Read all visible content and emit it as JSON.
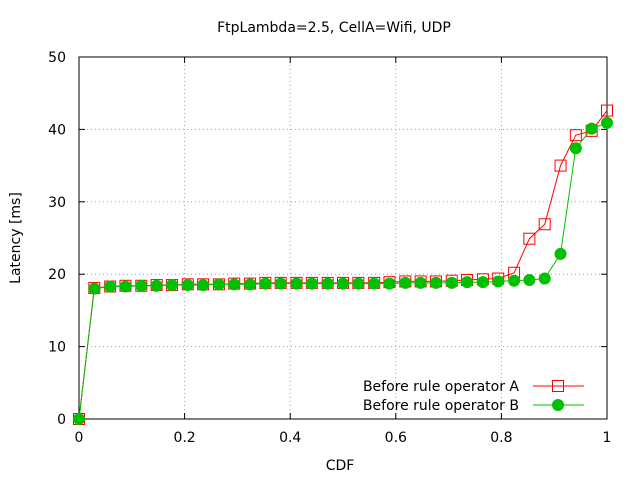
{
  "chart_data": {
    "type": "line",
    "title": "FtpLambda=2.5, CellA=Wifi, UDP",
    "xlabel": "CDF",
    "ylabel": "Latency [ms]",
    "xlim": [
      0,
      1
    ],
    "ylim": [
      0,
      50
    ],
    "x_ticks": [
      0,
      0.2,
      0.4,
      0.6,
      0.8,
      1
    ],
    "x_tick_labels": [
      "0",
      "0.2",
      "0.4",
      "0.6",
      "0.8",
      "1"
    ],
    "y_ticks": [
      0,
      10,
      20,
      30,
      40,
      50
    ],
    "y_tick_labels": [
      "0",
      "10",
      "20",
      "30",
      "40",
      "50"
    ],
    "grid": true,
    "legend_position": "bottom-right",
    "series": [
      {
        "name": "Before rule operator A",
        "color": "#ff0000",
        "marker": "open-square",
        "x": [
          0,
          0.029,
          0.059,
          0.088,
          0.118,
          0.147,
          0.176,
          0.206,
          0.235,
          0.265,
          0.294,
          0.324,
          0.353,
          0.382,
          0.412,
          0.441,
          0.471,
          0.5,
          0.529,
          0.559,
          0.588,
          0.618,
          0.647,
          0.676,
          0.706,
          0.735,
          0.765,
          0.794,
          0.824,
          0.853,
          0.882,
          0.912,
          0.941,
          0.971,
          1.0
        ],
        "y": [
          0,
          18.1,
          18.3,
          18.4,
          18.4,
          18.5,
          18.5,
          18.6,
          18.6,
          18.6,
          18.7,
          18.7,
          18.8,
          18.8,
          18.8,
          18.8,
          18.8,
          18.8,
          18.8,
          18.8,
          18.9,
          19.0,
          19.0,
          19.0,
          19.1,
          19.2,
          19.3,
          19.4,
          20.2,
          24.9,
          26.9,
          35.0,
          39.2,
          39.8,
          42.6
        ]
      },
      {
        "name": "Before rule operator B",
        "color": "#00c000",
        "marker": "filled-circle",
        "x": [
          0,
          0.029,
          0.059,
          0.088,
          0.118,
          0.147,
          0.176,
          0.206,
          0.235,
          0.265,
          0.294,
          0.324,
          0.353,
          0.382,
          0.412,
          0.441,
          0.471,
          0.5,
          0.529,
          0.559,
          0.588,
          0.618,
          0.647,
          0.676,
          0.706,
          0.735,
          0.765,
          0.794,
          0.824,
          0.853,
          0.882,
          0.912,
          0.941,
          0.971,
          1.0
        ],
        "y": [
          0,
          18.0,
          18.3,
          18.3,
          18.4,
          18.4,
          18.5,
          18.5,
          18.5,
          18.6,
          18.6,
          18.6,
          18.7,
          18.7,
          18.7,
          18.7,
          18.7,
          18.7,
          18.7,
          18.7,
          18.7,
          18.8,
          18.8,
          18.8,
          18.8,
          18.9,
          18.9,
          19.0,
          19.1,
          19.2,
          19.4,
          22.8,
          37.4,
          40.1,
          40.9
        ]
      }
    ]
  }
}
